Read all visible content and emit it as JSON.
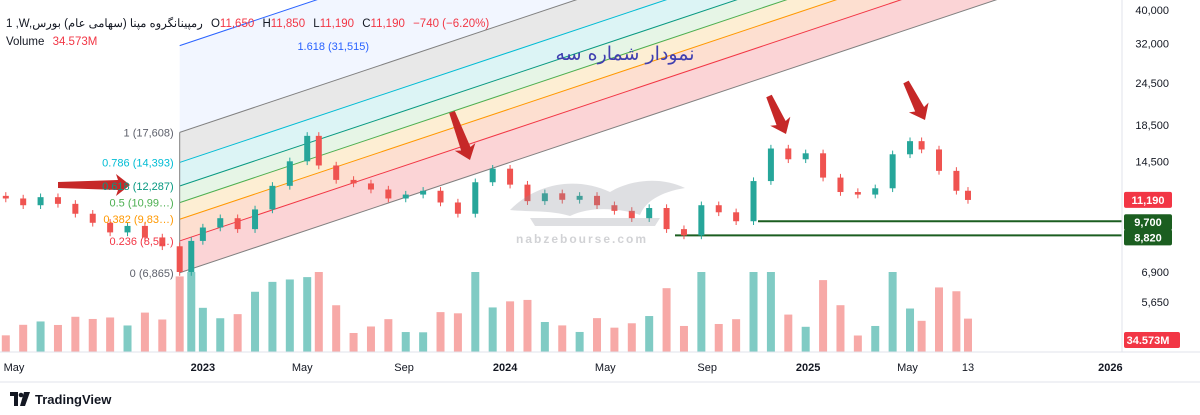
{
  "legend": {
    "symbol": "1 ,W,رمپینانگروه مپنا (سهامی عام) بورس",
    "open_label": "O",
    "open": "11,650",
    "high_label": "H",
    "high": "11,850",
    "low_label": "L",
    "low": "11,190",
    "close_label": "C",
    "close": "11,190",
    "change": "−740 (−6.20%)",
    "volume_label": "Volume",
    "volume": "34.573M"
  },
  "annotation_title": "نمودار شماره سه",
  "watermark": {
    "text": "nabzebourse.com"
  },
  "footer": {
    "brand": "TradingView"
  },
  "colors": {
    "up": "#26a69a",
    "down": "#ef5350",
    "vol_up": "#80cbc4",
    "vol_down": "#f7a9a7",
    "arrow": "#c62828",
    "price_badge": "#f23645",
    "support_badge": "#1b5e20"
  },
  "chart_data": {
    "type": "candlestick",
    "title": "نمودار شماره سه",
    "x": {
      "type": "date",
      "range": [
        "2022-05-01",
        "2026-01-15"
      ],
      "tick_labels": [
        "May",
        "2023",
        "May",
        "Sep",
        "2024",
        "May",
        "Sep",
        "2025",
        "May",
        "13",
        "2026"
      ]
    },
    "y": {
      "scale": "log",
      "range": [
        4700,
        41000
      ],
      "tick_labels": [
        "40,000",
        "32,000",
        "24,500",
        "18,500",
        "14,500",
        "11,190",
        "9,700",
        "8,820",
        "6,900",
        "5,650"
      ]
    },
    "last_price": "11,190",
    "support_levels": [
      {
        "label": "9,700",
        "value": 9700
      },
      {
        "label": "8,820",
        "value": 8820
      }
    ],
    "fib_channel": [
      {
        "label": "0 (6,865)",
        "ratio": 0,
        "value": 6865
      },
      {
        "label": "0.236 (8,5…)",
        "ratio": 0.236,
        "value": 8500
      },
      {
        "label": "0.382 (9,83…)",
        "ratio": 0.382,
        "value": 9830
      },
      {
        "label": "0.5 (10,99…)",
        "ratio": 0.5,
        "value": 10990
      },
      {
        "label": "0.618 (12,287)",
        "ratio": 0.618,
        "value": 12287
      },
      {
        "label": "0.786 (14,393)",
        "ratio": 0.786,
        "value": 14393
      },
      {
        "label": "1 (17,608)",
        "ratio": 1,
        "value": 17608
      },
      {
        "label": "1.618 (31,515)",
        "ratio": 1.618,
        "value": 31515
      }
    ],
    "volume_last": "34.573M",
    "series": [
      {
        "date": "2022-05-08",
        "open": 11500,
        "close": 11300
      },
      {
        "date": "2022-05-29",
        "open": 11300,
        "close": 10800
      },
      {
        "date": "2022-06-19",
        "open": 10800,
        "close": 11400
      },
      {
        "date": "2022-07-10",
        "open": 11400,
        "close": 10900
      },
      {
        "date": "2022-07-31",
        "open": 10900,
        "close": 10200
      },
      {
        "date": "2022-08-21",
        "open": 10200,
        "close": 9600
      },
      {
        "date": "2022-09-11",
        "open": 9600,
        "close": 9000
      },
      {
        "date": "2022-10-02",
        "open": 9000,
        "close": 9400
      },
      {
        "date": "2022-10-23",
        "open": 9400,
        "close": 8700
      },
      {
        "date": "2022-11-13",
        "open": 8700,
        "close": 8200
      },
      {
        "date": "2022-12-04",
        "open": 8200,
        "close": 6900
      },
      {
        "date": "2022-12-18",
        "open": 6900,
        "close": 8500
      },
      {
        "date": "2023-01-01",
        "open": 8500,
        "close": 9300
      },
      {
        "date": "2023-01-22",
        "open": 9300,
        "close": 9900
      },
      {
        "date": "2023-02-12",
        "open": 9900,
        "close": 9200
      },
      {
        "date": "2023-03-05",
        "open": 9200,
        "close": 10500
      },
      {
        "date": "2023-03-26",
        "open": 10500,
        "close": 12300
      },
      {
        "date": "2023-04-16",
        "open": 12300,
        "close": 14500
      },
      {
        "date": "2023-05-07",
        "open": 14500,
        "close": 17200
      },
      {
        "date": "2023-05-21",
        "open": 17200,
        "close": 14100
      },
      {
        "date": "2023-06-11",
        "open": 14100,
        "close": 12800
      },
      {
        "date": "2023-07-02",
        "open": 12800,
        "close": 12500
      },
      {
        "date": "2023-07-23",
        "open": 12500,
        "close": 12000
      },
      {
        "date": "2023-08-13",
        "open": 12000,
        "close": 11300
      },
      {
        "date": "2023-09-03",
        "open": 11300,
        "close": 11600
      },
      {
        "date": "2023-09-24",
        "open": 11600,
        "close": 11900
      },
      {
        "date": "2023-10-15",
        "open": 11900,
        "close": 11000
      },
      {
        "date": "2023-11-05",
        "open": 11000,
        "close": 10200
      },
      {
        "date": "2023-11-26",
        "open": 10200,
        "close": 12600
      },
      {
        "date": "2023-12-17",
        "open": 12600,
        "close": 13800
      },
      {
        "date": "2024-01-07",
        "open": 13800,
        "close": 12400
      },
      {
        "date": "2024-01-28",
        "open": 12400,
        "close": 11100
      },
      {
        "date": "2024-02-18",
        "open": 11100,
        "close": 11700
      },
      {
        "date": "2024-03-10",
        "open": 11700,
        "close": 11200
      },
      {
        "date": "2024-03-31",
        "open": 11200,
        "close": 11500
      },
      {
        "date": "2024-04-21",
        "open": 11500,
        "close": 10800
      },
      {
        "date": "2024-05-12",
        "open": 10800,
        "close": 10400
      },
      {
        "date": "2024-06-02",
        "open": 10400,
        "close": 9900
      },
      {
        "date": "2024-06-23",
        "open": 9900,
        "close": 10600
      },
      {
        "date": "2024-07-14",
        "open": 10600,
        "close": 9200
      },
      {
        "date": "2024-08-04",
        "open": 9200,
        "close": 8820
      },
      {
        "date": "2024-08-25",
        "open": 8820,
        "close": 10800
      },
      {
        "date": "2024-09-15",
        "open": 10800,
        "close": 10300
      },
      {
        "date": "2024-10-06",
        "open": 10300,
        "close": 9700
      },
      {
        "date": "2024-10-27",
        "open": 9700,
        "close": 12700
      },
      {
        "date": "2024-11-17",
        "open": 12700,
        "close": 15800
      },
      {
        "date": "2024-12-08",
        "open": 15800,
        "close": 14700
      },
      {
        "date": "2024-12-29",
        "open": 14700,
        "close": 15300
      },
      {
        "date": "2025-01-19",
        "open": 15300,
        "close": 13000
      },
      {
        "date": "2025-02-09",
        "open": 13000,
        "close": 11800
      },
      {
        "date": "2025-03-02",
        "open": 11800,
        "close": 11600
      },
      {
        "date": "2025-03-23",
        "open": 11600,
        "close": 12100
      },
      {
        "date": "2025-04-13",
        "open": 12100,
        "close": 15200
      },
      {
        "date": "2025-05-04",
        "open": 15200,
        "close": 16600
      },
      {
        "date": "2025-05-18",
        "open": 16600,
        "close": 15700
      },
      {
        "date": "2025-06-08",
        "open": 15700,
        "close": 13600
      },
      {
        "date": "2025-06-29",
        "open": 13600,
        "close": 11900
      },
      {
        "date": "2025-07-13",
        "open": 11900,
        "close": 11190
      }
    ]
  }
}
